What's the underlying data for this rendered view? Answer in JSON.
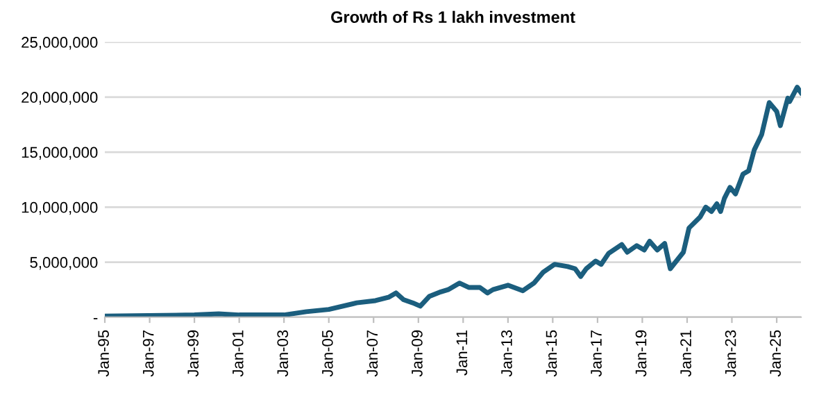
{
  "chart_data": {
    "type": "line",
    "title": "Growth of Rs 1 lakh investment",
    "x": [
      "1995-01",
      "1999-01",
      "2000-02",
      "2001-01",
      "2002-04",
      "2003-01",
      "2004-01",
      "2005-01",
      "2006-04",
      "2007-02",
      "2007-09",
      "2008-01",
      "2008-05",
      "2008-10",
      "2009-02",
      "2009-07",
      "2010-01",
      "2010-05",
      "2010-11",
      "2011-04",
      "2011-10",
      "2012-02",
      "2012-05",
      "2013-01",
      "2013-09",
      "2014-03",
      "2014-08",
      "2015-02",
      "2015-09",
      "2016-01",
      "2016-04",
      "2016-07",
      "2016-12",
      "2017-03",
      "2017-07",
      "2018-02",
      "2018-05",
      "2018-10",
      "2019-02",
      "2019-05",
      "2019-09",
      "2020-01",
      "2020-02",
      "2020-04",
      "2020-11",
      "2021-02",
      "2021-08",
      "2021-11",
      "2022-02",
      "2022-05",
      "2022-07",
      "2022-09",
      "2022-12",
      "2023-03",
      "2023-07",
      "2023-10",
      "2024-01",
      "2024-05",
      "2024-09",
      "2025-01",
      "2025-03",
      "2025-07",
      "2025-08",
      "2025-12",
      "2026-02"
    ],
    "series": [
      {
        "color": "#1b5e7e",
        "values": [
          100000,
          200000,
          300000,
          200000,
          200000,
          200000,
          500000,
          700000,
          1300000,
          1500000,
          1800000,
          2200000,
          1600000,
          1300000,
          1000000,
          1900000,
          2300000,
          2500000,
          3100000,
          2700000,
          2700000,
          2200000,
          2500000,
          2900000,
          2400000,
          3100000,
          4100000,
          4800000,
          4600000,
          4400000,
          3700000,
          4400000,
          5100000,
          4800000,
          5800000,
          6600000,
          5900000,
          6500000,
          6100000,
          6900000,
          6100000,
          6700000,
          5900000,
          4400000,
          5900000,
          8100000,
          9100000,
          10000000,
          9600000,
          10300000,
          9600000,
          10800000,
          11800000,
          11200000,
          13000000,
          13300000,
          15200000,
          16600000,
          19500000,
          18700000,
          17400000,
          19900000,
          19600000,
          20900000,
          20400000
        ]
      }
    ],
    "xlim": [
      "1995-01",
      "2026-02"
    ],
    "xticks": [
      {
        "value": "1995-01",
        "label": "Jan-95"
      },
      {
        "value": "1997-01",
        "label": "Jan-97"
      },
      {
        "value": "1999-01",
        "label": "Jan-99"
      },
      {
        "value": "2001-01",
        "label": "Jan-01"
      },
      {
        "value": "2003-01",
        "label": "Jan-03"
      },
      {
        "value": "2005-01",
        "label": "Jan-05"
      },
      {
        "value": "2007-01",
        "label": "Jan-07"
      },
      {
        "value": "2009-01",
        "label": "Jan-09"
      },
      {
        "value": "2011-01",
        "label": "Jan-11"
      },
      {
        "value": "2013-01",
        "label": "Jan-13"
      },
      {
        "value": "2015-01",
        "label": "Jan-15"
      },
      {
        "value": "2017-01",
        "label": "Jan-17"
      },
      {
        "value": "2019-01",
        "label": "Jan-19"
      },
      {
        "value": "2021-01",
        "label": "Jan-21"
      },
      {
        "value": "2023-01",
        "label": "Jan-23"
      },
      {
        "value": "2025-01",
        "label": "Jan-25"
      }
    ],
    "ylim": [
      0,
      25000000
    ],
    "yticks": [
      {
        "value": 0,
        "label": "-"
      },
      {
        "value": 5000000,
        "label": "5,000,000"
      },
      {
        "value": 10000000,
        "label": "10,000,000"
      },
      {
        "value": 15000000,
        "label": "15,000,000"
      },
      {
        "value": 20000000,
        "label": "20,000,000"
      },
      {
        "value": 25000000,
        "label": "25,000,000"
      }
    ],
    "grid": "y",
    "marker": "none",
    "line_style": "solid"
  }
}
